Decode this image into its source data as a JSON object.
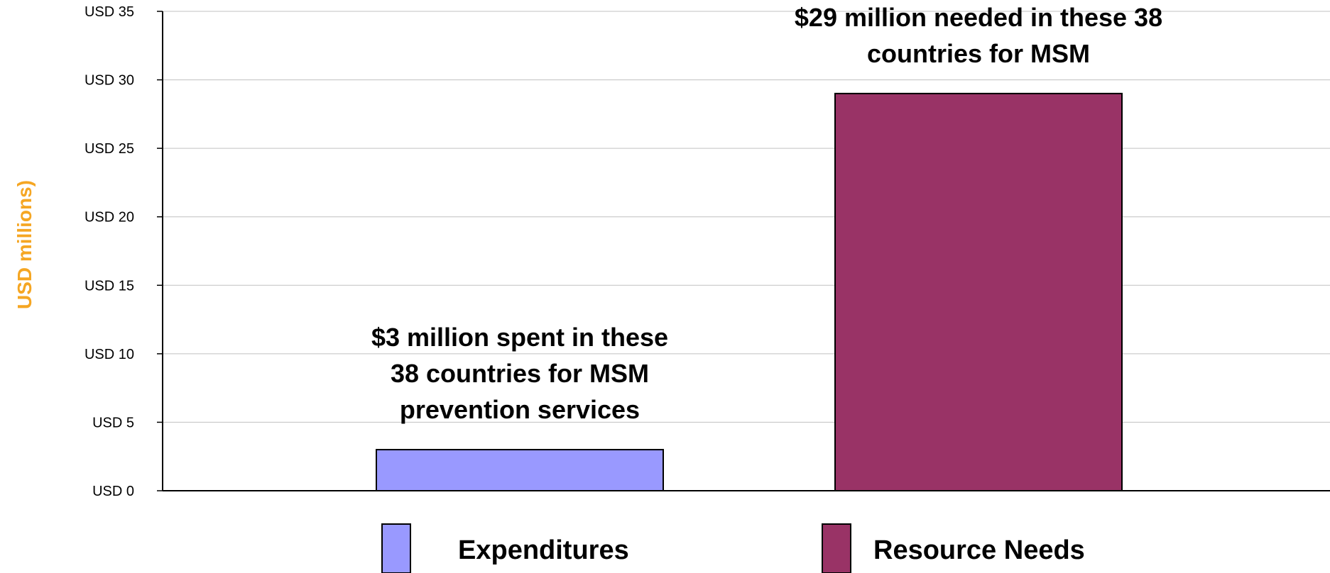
{
  "chart_data": {
    "type": "bar",
    "title": "",
    "xlabel": "",
    "ylabel": "USD millions)",
    "ylim": [
      0,
      35
    ],
    "yticks": [
      0,
      5,
      10,
      15,
      20,
      25,
      30,
      35
    ],
    "ytick_labels": [
      "USD 0",
      "USD 5",
      "USD 10",
      "USD 15",
      "USD 20",
      "USD 25",
      "USD 30",
      "USD 35"
    ],
    "grid": true,
    "legend_position": "bottom",
    "series": [
      {
        "name": "Expenditures",
        "values": [
          3
        ],
        "color": "#9999FF"
      },
      {
        "name": "Resource Needs",
        "values": [
          29
        ],
        "color": "#993366"
      }
    ],
    "annotations": [
      {
        "series": "Expenditures",
        "lines": [
          "$3 million spent in these",
          "38 countries for MSM",
          "prevention services"
        ]
      },
      {
        "series": "Resource Needs",
        "lines": [
          "$29 million needed in these 38",
          "countries for MSM"
        ]
      }
    ]
  },
  "colors": {
    "ylabel": "#F5A623",
    "gridline": "#C0C0C0",
    "axis": "#000000"
  }
}
